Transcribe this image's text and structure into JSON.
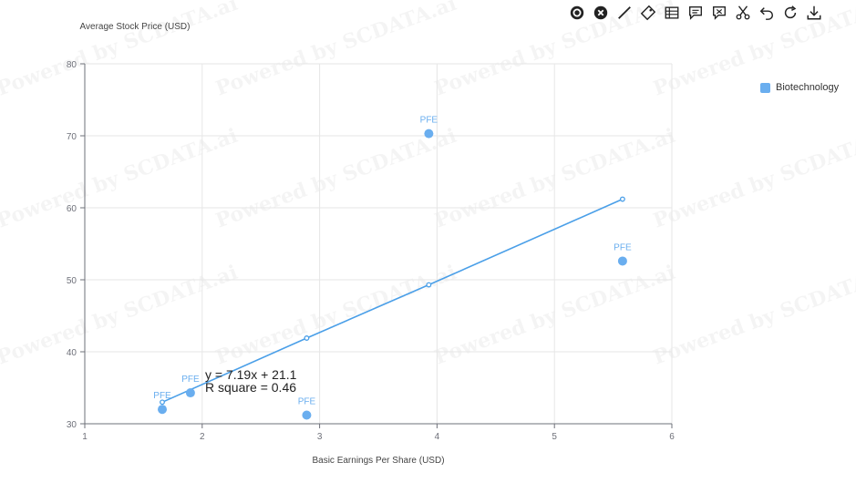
{
  "chart_data": {
    "type": "scatter",
    "ylabel": "Average Stock Price (USD)",
    "xlabel": "Basic Earnings Per Share (USD)",
    "xlim": [
      1,
      6
    ],
    "ylim": [
      30,
      80
    ],
    "x_ticks": [
      1,
      2,
      3,
      4,
      5,
      6
    ],
    "y_ticks": [
      30,
      40,
      50,
      60,
      70,
      80
    ],
    "grid": true,
    "legend_position": "top-right",
    "series": [
      {
        "name": "Biotechnology",
        "color": "#6aaeef",
        "points": [
          {
            "x": 1.66,
            "y": 32.0,
            "label": "PFE"
          },
          {
            "x": 1.9,
            "y": 34.3,
            "label": "PFE"
          },
          {
            "x": 2.89,
            "y": 31.2,
            "label": "PFE"
          },
          {
            "x": 3.93,
            "y": 70.3,
            "label": "PFE"
          },
          {
            "x": 5.58,
            "y": 52.6,
            "label": "PFE"
          }
        ]
      }
    ],
    "trendline": {
      "color": "#4a9fe8",
      "x": [
        1.66,
        2.89,
        3.93,
        5.58
      ],
      "y": [
        33.0,
        41.9,
        49.3,
        61.2
      ],
      "equation": "y = 7.19x + 21.1",
      "r_square": "R square = 0.46"
    }
  },
  "watermark": "Powered by SCDATA.ai",
  "toolbar": {
    "icons": [
      "target-icon",
      "close-circle-icon",
      "line-icon",
      "tag-icon",
      "list-icon",
      "comment-icon",
      "flag-icon",
      "scissors-icon",
      "undo-icon",
      "refresh-icon",
      "download-icon"
    ]
  }
}
